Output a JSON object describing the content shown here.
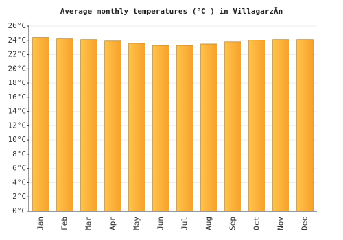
{
  "chart_data": {
    "type": "bar",
    "title": "Average monthly temperatures (°C ) in VillagarzÃ­n",
    "categories": [
      "Jan",
      "Feb",
      "Mar",
      "Apr",
      "May",
      "Jun",
      "Jul",
      "Aug",
      "Sep",
      "Oct",
      "Nov",
      "Dec"
    ],
    "values": [
      24.4,
      24.2,
      24.1,
      23.9,
      23.6,
      23.3,
      23.3,
      23.5,
      23.8,
      24.0,
      24.1,
      24.1
    ],
    "color": "#f7a12c",
    "ylim": [
      0,
      26
    ],
    "yticks": [
      {
        "value": 0,
        "label": "0°C"
      },
      {
        "value": 2,
        "label": "2°C"
      },
      {
        "value": 4,
        "label": "4°C"
      },
      {
        "value": 6,
        "label": "6°C"
      },
      {
        "value": 8,
        "label": "8°C"
      },
      {
        "value": 10,
        "label": "10°C"
      },
      {
        "value": 12,
        "label": "12°C"
      },
      {
        "value": 14,
        "label": "14°C"
      },
      {
        "value": 16,
        "label": "16°C"
      },
      {
        "value": 18,
        "label": "18°C"
      },
      {
        "value": 20,
        "label": "20°C"
      },
      {
        "value": 22,
        "label": "22°C"
      },
      {
        "value": 24,
        "label": "24°C"
      },
      {
        "value": 26,
        "label": "26°C"
      }
    ],
    "grid": true
  }
}
